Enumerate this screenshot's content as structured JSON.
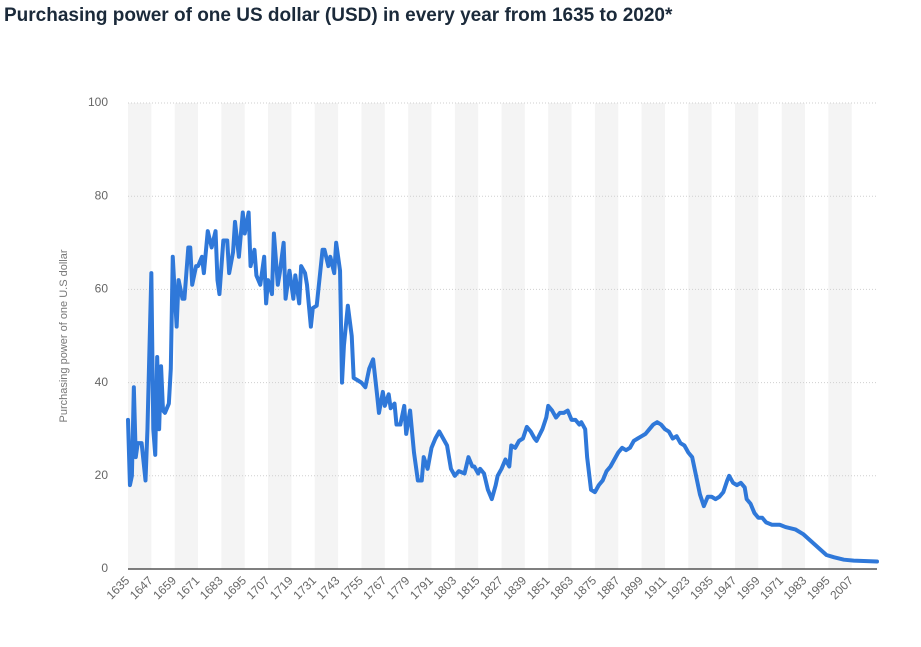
{
  "chart_data": {
    "type": "line",
    "title": "Purchasing power of one US dollar (USD) in every year from 1635 to 2020*",
    "y_label": "Purchasing power of one U.S dollar",
    "color": "#2f78d9",
    "grid": true,
    "xlim": [
      1635,
      2020
    ],
    "ylim": [
      0,
      100
    ],
    "yticks": [
      0,
      20,
      40,
      60,
      80,
      100
    ],
    "xticks": [
      1635,
      1647,
      1659,
      1671,
      1683,
      1695,
      1707,
      1719,
      1731,
      1743,
      1755,
      1767,
      1779,
      1791,
      1803,
      1815,
      1827,
      1839,
      1851,
      1863,
      1875,
      1887,
      1899,
      1911,
      1923,
      1935,
      1947,
      1959,
      1971,
      1983,
      1995,
      2007
    ],
    "x": [
      1635,
      1636,
      1637,
      1638,
      1639,
      1640,
      1642,
      1644,
      1645,
      1647,
      1648,
      1649,
      1650,
      1651,
      1652,
      1653,
      1654,
      1656,
      1657,
      1658,
      1660,
      1661,
      1663,
      1664,
      1666,
      1667,
      1668,
      1670,
      1671,
      1673,
      1674,
      1676,
      1678,
      1680,
      1681,
      1682,
      1684,
      1686,
      1687,
      1689,
      1690,
      1692,
      1694,
      1695,
      1697,
      1698,
      1700,
      1701,
      1703,
      1705,
      1706,
      1707,
      1709,
      1710,
      1712,
      1713,
      1715,
      1716,
      1718,
      1720,
      1721,
      1723,
      1724,
      1726,
      1727,
      1729,
      1730,
      1732,
      1735,
      1736,
      1738,
      1739,
      1741,
      1742,
      1744,
      1745,
      1746,
      1748,
      1750,
      1751,
      1753,
      1755,
      1757,
      1759,
      1761,
      1763,
      1764,
      1766,
      1767,
      1769,
      1770,
      1772,
      1773,
      1775,
      1777,
      1778,
      1780,
      1782,
      1784,
      1786,
      1787,
      1789,
      1791,
      1793,
      1795,
      1797,
      1799,
      1801,
      1803,
      1805,
      1808,
      1810,
      1812,
      1813,
      1815,
      1816,
      1818,
      1820,
      1822,
      1824,
      1825,
      1827,
      1829,
      1831,
      1832,
      1834,
      1836,
      1838,
      1840,
      1842,
      1844,
      1845,
      1848,
      1850,
      1851,
      1853,
      1855,
      1857,
      1859,
      1861,
      1863,
      1865,
      1867,
      1868,
      1870,
      1871,
      1873,
      1875,
      1877,
      1879,
      1881,
      1883,
      1885,
      1887,
      1889,
      1891,
      1893,
      1895,
      1897,
      1899,
      1901,
      1903,
      1905,
      1907,
      1909,
      1911,
      1913,
      1915,
      1917,
      1919,
      1921,
      1923,
      1925,
      1927,
      1929,
      1931,
      1933,
      1935,
      1937,
      1939,
      1941,
      1943,
      1944,
      1946,
      1948,
      1950,
      1952,
      1953,
      1955,
      1957,
      1959,
      1961,
      1963,
      1966,
      1970,
      1973,
      1978,
      1982,
      1986,
      1990,
      1994,
      1998,
      2003,
      2008,
      2020
    ],
    "values": [
      32,
      18,
      20,
      39,
      24,
      27,
      27,
      19,
      30,
      63.5,
      30,
      24.5,
      45.5,
      30,
      43.5,
      34,
      33.5,
      35.5,
      43,
      67,
      52,
      62,
      58,
      58,
      69,
      69,
      61,
      65,
      65,
      67,
      63.5,
      72.5,
      69,
      72.5,
      62,
      59,
      70.5,
      70.5,
      63.5,
      68,
      74.5,
      67,
      76.5,
      72,
      76.5,
      65,
      68.5,
      63,
      61,
      67,
      57,
      62,
      59,
      72,
      61,
      63.5,
      70,
      58,
      64,
      58,
      63,
      57,
      65,
      63.5,
      61,
      52,
      56,
      56.5,
      68.5,
      68.5,
      65,
      67,
      63.5,
      70,
      64,
      40,
      48,
      56.5,
      50,
      41,
      40.5,
      40,
      39,
      43,
      45,
      37.5,
      33.5,
      38,
      35,
      37.5,
      34.5,
      35.5,
      31,
      31,
      35,
      29,
      34,
      25,
      19,
      19,
      24,
      21.5,
      26,
      28,
      29.5,
      28,
      26.5,
      21.5,
      20,
      21,
      20.5,
      24,
      22,
      22,
      20.5,
      21.5,
      20.5,
      17,
      15,
      18,
      20,
      21.5,
      23.5,
      22,
      26.5,
      26,
      27.5,
      28,
      30.5,
      29.5,
      28,
      27.5,
      30,
      32.5,
      35,
      34,
      32.5,
      33.5,
      33.5,
      34,
      32,
      32,
      31,
      31.5,
      30,
      24,
      17,
      16.5,
      18,
      19,
      21,
      22,
      23.5,
      25,
      26,
      25.5,
      26,
      27.5,
      28,
      28.5,
      29,
      30,
      31,
      31.5,
      31,
      30,
      29.5,
      28,
      28.5,
      27,
      26.5,
      25,
      24,
      20,
      16,
      13.5,
      15.5,
      15.5,
      15,
      15.5,
      16.5,
      19,
      20,
      18.5,
      18,
      18.5,
      17.5,
      15,
      14,
      12,
      11,
      11,
      10,
      9.5,
      9.5,
      9,
      8.5,
      7.5,
      6,
      4.5,
      3,
      2.5,
      2,
      1.8,
      1.6
    ]
  }
}
